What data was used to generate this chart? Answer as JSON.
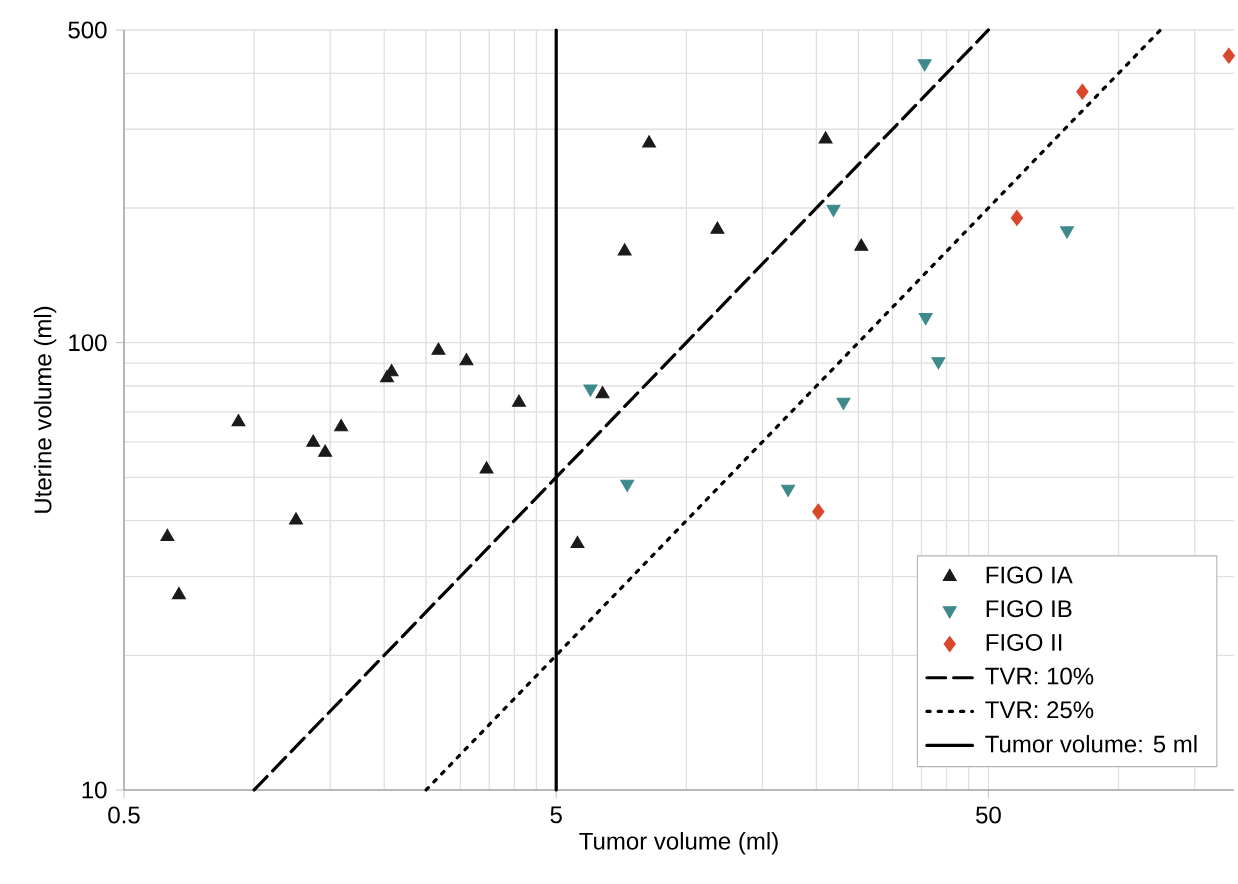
{
  "chart_data": {
    "type": "scatter",
    "xlabel": "Tumor volume (ml)",
    "ylabel": "Uterine volume (ml)",
    "log": "xy",
    "grid": true,
    "legend": "bottom right",
    "xlim": [
      0.5,
      185
    ],
    "xticks": [
      0.5,
      5,
      50
    ],
    "ylim": [
      10,
      500
    ],
    "yticks": [
      10,
      100,
      500
    ],
    "series": [
      {
        "name": "FIGO IA",
        "marker": "triangle",
        "color": "#1a1a1a",
        "x": [
          0.63,
          0.67,
          0.92,
          1.25,
          1.37,
          1.46,
          1.59,
          2.03,
          2.08,
          2.67,
          3.1,
          4.1,
          3.45,
          5.6,
          6.4,
          7.2,
          8.2,
          11.8,
          21,
          25.4
        ],
        "values": [
          36.8,
          27.3,
          66.5,
          40.1,
          59.8,
          56.8,
          64.8,
          83.4,
          86,
          96,
          91,
          73.5,
          52.1,
          35.5,
          76.8,
          160,
          279,
          179,
          285,
          164
        ]
      },
      {
        "name": "FIGO IB",
        "marker": "triangle-down",
        "color": "#3d8a8c",
        "x": [
          6.0,
          7.3,
          35.6,
          21.9,
          35.8,
          38.3,
          23.1,
          76,
          17.2
        ],
        "values": [
          78.9,
          48.3,
          421,
          199,
          114,
          90.8,
          73.7,
          178,
          47.1
        ]
      },
      {
        "name": "FIGO II",
        "marker": "diamond",
        "color": "#d9472b",
        "x": [
          180,
          82.5,
          58.2,
          20.2
        ],
        "values": [
          438,
          364,
          190,
          41.9
        ]
      },
      {
        "name": "TVR: 10%",
        "type": "line",
        "line_style": "dashed",
        "marker": "none",
        "color": "#000000",
        "x": [
          1,
          50
        ],
        "values": [
          10,
          500
        ]
      },
      {
        "name": "TVR: 25%",
        "type": "line",
        "line_style": "dotted",
        "marker": "none",
        "color": "#000000",
        "x": [
          2.5,
          125
        ],
        "values": [
          10,
          500
        ]
      },
      {
        "name": "Tumor volume: 5 ml",
        "type": "line",
        "line_style": "solid",
        "marker": "none",
        "color": "#000000",
        "x": [
          5,
          5
        ],
        "values": [
          10,
          500
        ]
      }
    ]
  }
}
